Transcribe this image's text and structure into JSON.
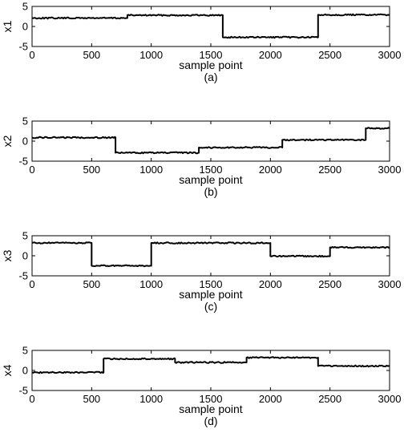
{
  "chart_data": [
    {
      "type": "line",
      "caption": "(a)",
      "xlabel": "sample point",
      "ylabel": "x1",
      "xlim": [
        0,
        3000
      ],
      "ylim": [
        -5,
        5
      ],
      "xticks": [
        "0",
        "500",
        "1000",
        "1500",
        "2000",
        "2500",
        "3000"
      ],
      "yticks": [
        "5",
        "0",
        "-5"
      ],
      "grid": false,
      "segments": [
        {
          "start": 0,
          "end": 800,
          "value": 2.1
        },
        {
          "start": 800,
          "end": 1600,
          "value": 2.8
        },
        {
          "start": 1600,
          "end": 2400,
          "value": -2.7
        },
        {
          "start": 2400,
          "end": 3000,
          "value": 2.9
        }
      ]
    },
    {
      "type": "line",
      "caption": "(b)",
      "xlabel": "sample point",
      "ylabel": "x2",
      "xlim": [
        0,
        3000
      ],
      "ylim": [
        -5,
        5
      ],
      "xticks": [
        "0",
        "500",
        "1000",
        "1500",
        "2000",
        "2500",
        "3000"
      ],
      "yticks": [
        "5",
        "0",
        "-5"
      ],
      "grid": false,
      "segments": [
        {
          "start": 0,
          "end": 700,
          "value": 0.9
        },
        {
          "start": 700,
          "end": 1400,
          "value": -2.9
        },
        {
          "start": 1400,
          "end": 2100,
          "value": -1.6
        },
        {
          "start": 2100,
          "end": 2800,
          "value": 0.3
        },
        {
          "start": 2800,
          "end": 3000,
          "value": 3.2
        }
      ]
    },
    {
      "type": "line",
      "caption": "(c)",
      "xlabel": "sample point",
      "ylabel": "x3",
      "xlim": [
        0,
        3000
      ],
      "ylim": [
        -5,
        5
      ],
      "xticks": [
        "0",
        "500",
        "1000",
        "1500",
        "2000",
        "2500",
        "3000"
      ],
      "yticks": [
        "5",
        "0",
        "-5"
      ],
      "grid": false,
      "segments": [
        {
          "start": 0,
          "end": 500,
          "value": 3.2
        },
        {
          "start": 500,
          "end": 1000,
          "value": -2.5
        },
        {
          "start": 1000,
          "end": 2000,
          "value": 3.2
        },
        {
          "start": 2000,
          "end": 2500,
          "value": -0.1
        },
        {
          "start": 2500,
          "end": 3000,
          "value": 2.1
        }
      ]
    },
    {
      "type": "line",
      "caption": "(d)",
      "xlabel": "sample point",
      "ylabel": "x4",
      "xlim": [
        0,
        3000
      ],
      "ylim": [
        -5,
        5
      ],
      "xticks": [
        "0",
        "500",
        "1000",
        "1500",
        "2000",
        "2500",
        "3000"
      ],
      "yticks": [
        "5",
        "0",
        "-5"
      ],
      "grid": false,
      "segments": [
        {
          "start": 0,
          "end": 600,
          "value": -0.5
        },
        {
          "start": 600,
          "end": 1200,
          "value": 2.9
        },
        {
          "start": 1200,
          "end": 1800,
          "value": 2.0
        },
        {
          "start": 1800,
          "end": 2400,
          "value": 3.2
        },
        {
          "start": 2400,
          "end": 3000,
          "value": 1.1
        }
      ]
    }
  ],
  "colors": {
    "line": "#000000",
    "axis": "#000000",
    "background": "#ffffff"
  }
}
